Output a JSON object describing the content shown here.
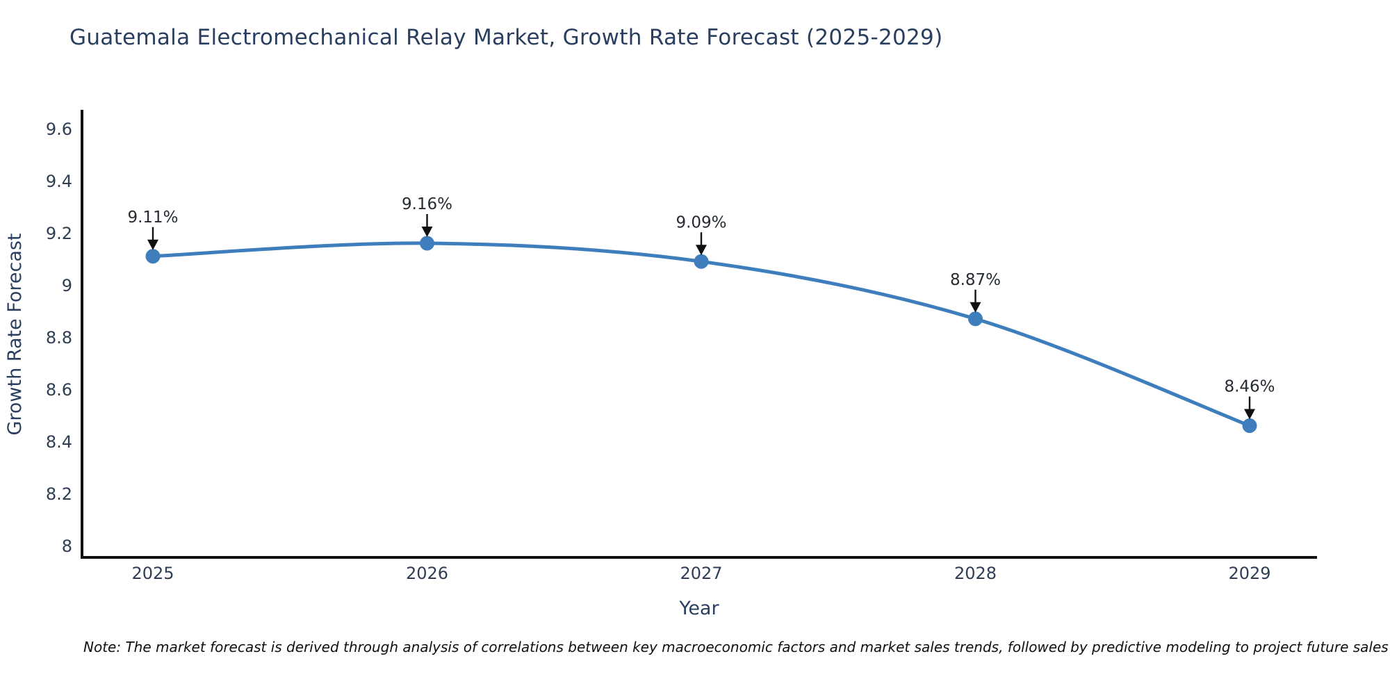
{
  "chart_data": {
    "type": "line",
    "title": "Guatemala Electromechanical Relay Market, Growth Rate Forecast (2025-2029)",
    "xlabel": "Year",
    "ylabel": "Growth Rate Forecast",
    "categories": [
      "2025",
      "2026",
      "2027",
      "2028",
      "2029"
    ],
    "series": [
      {
        "name": "Growth Rate Forecast",
        "values": [
          9.11,
          9.16,
          9.09,
          8.87,
          8.46
        ],
        "point_labels": [
          "9.11%",
          "9.16%",
          "9.09%",
          "8.87%",
          "8.46%"
        ]
      }
    ],
    "yticks": [
      8,
      8.2,
      8.4,
      8.6,
      8.8,
      9,
      9.2,
      9.4,
      9.6
    ],
    "ylim": [
      7.95,
      9.67
    ],
    "grid": false,
    "legend": false,
    "line_shape": "spline",
    "colors": {
      "line": "#3e7ebd",
      "marker": "#3e7ebd",
      "spine": "#111111",
      "arrow": "#111111",
      "title_text": "#2a3f5f",
      "axis_title_text": "#2a3f5f",
      "tick_text": "#2f3e54",
      "annotation_text": "#262b33",
      "background": "#ffffff"
    }
  },
  "note": {
    "text": "Note: The market forecast is derived through analysis of correlations between key macroeconomic factors and market sales trends, followed by predictive modeling to project future sales"
  }
}
